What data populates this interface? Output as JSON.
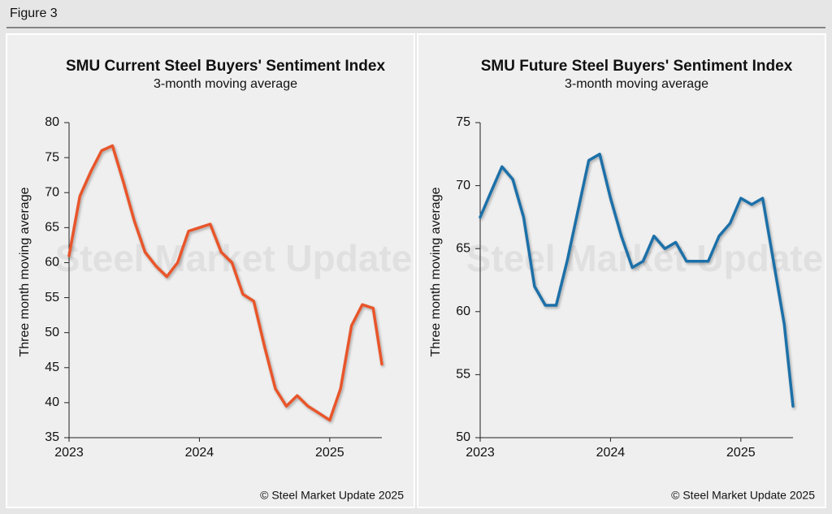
{
  "figure_label": "Figure 3",
  "chart_data": [
    {
      "type": "line",
      "title": "SMU Current Steel Buyers' Sentiment Index",
      "subtitle": "3-month moving average",
      "ylabel": "Three month moving average",
      "watermark": "Steel Market Update",
      "source": "© Steel Market Update 2025",
      "x": [
        2023.0,
        2023.083,
        2023.167,
        2023.25,
        2023.333,
        2023.417,
        2023.5,
        2023.583,
        2023.667,
        2023.75,
        2023.833,
        2023.917,
        2024.0,
        2024.083,
        2024.167,
        2024.25,
        2024.333,
        2024.417,
        2024.5,
        2024.583,
        2024.667,
        2024.75,
        2024.833,
        2024.917,
        2025.0,
        2025.083,
        2025.167,
        2025.25,
        2025.333,
        2025.4
      ],
      "values": [
        61,
        69.5,
        73,
        76,
        76.7,
        71.5,
        66,
        61.5,
        59.5,
        58,
        60,
        64.5,
        65,
        65.5,
        61.5,
        60,
        55.5,
        54.5,
        48,
        42,
        39.5,
        41,
        39.5,
        38.5,
        37.5,
        42,
        51,
        54,
        53.5,
        45.5
      ],
      "color": "#e8542a",
      "xlim": [
        2023.0,
        2025.4
      ],
      "xticks": [
        2023,
        2024,
        2025
      ],
      "ylim": [
        35,
        80
      ],
      "yticks": [
        35,
        40,
        45,
        50,
        55,
        60,
        65,
        70,
        75,
        80
      ]
    },
    {
      "type": "line",
      "title": "SMU Future Steel Buyers' Sentiment Index",
      "subtitle": "3-month moving average",
      "ylabel": "Three month moving average",
      "watermark": "Steel Market Update",
      "source": "© Steel Market Update 2025",
      "x": [
        2023.0,
        2023.083,
        2023.167,
        2023.25,
        2023.333,
        2023.417,
        2023.5,
        2023.583,
        2023.667,
        2023.75,
        2023.833,
        2023.917,
        2024.0,
        2024.083,
        2024.167,
        2024.25,
        2024.333,
        2024.417,
        2024.5,
        2024.583,
        2024.667,
        2024.75,
        2024.833,
        2024.917,
        2025.0,
        2025.083,
        2025.167,
        2025.25,
        2025.333,
        2025.4
      ],
      "values": [
        67.5,
        69.5,
        71.5,
        70.5,
        67.5,
        62,
        60.5,
        60.5,
        64,
        68,
        72,
        72.5,
        69,
        66,
        63.5,
        64,
        66,
        65,
        65.5,
        64,
        64,
        64,
        66,
        67,
        69,
        68.5,
        69,
        64,
        59,
        52.5
      ],
      "color": "#1f6fa8",
      "xlim": [
        2023.0,
        2025.4
      ],
      "xticks": [
        2023,
        2024,
        2025
      ],
      "ylim": [
        50,
        75
      ],
      "yticks": [
        50,
        55,
        60,
        65,
        70,
        75
      ]
    }
  ]
}
